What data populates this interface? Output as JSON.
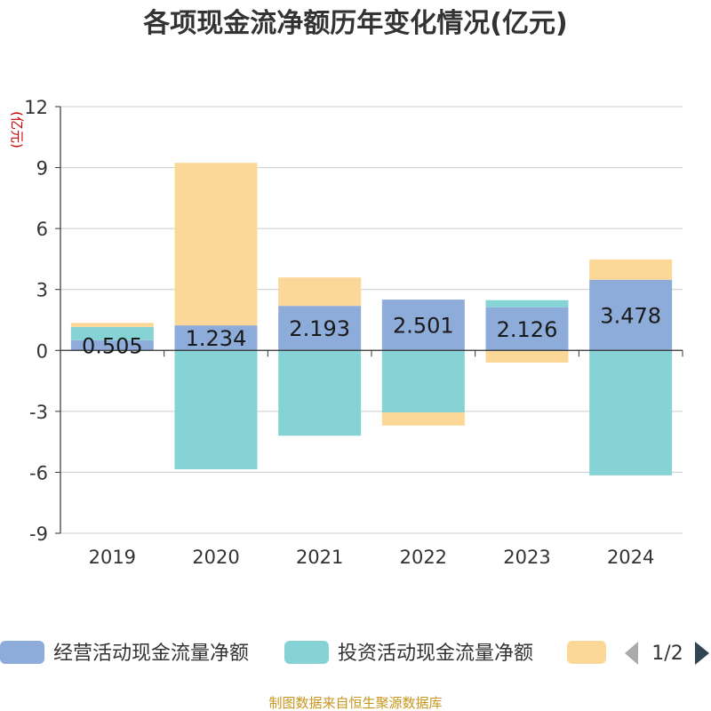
{
  "chart_data": {
    "type": "bar",
    "stacked": true,
    "title": "各项现金流净额历年变化情况(亿元)",
    "ylabel": "(亿元)",
    "categories": [
      "2019",
      "2020",
      "2021",
      "2022",
      "2023",
      "2024"
    ],
    "ylim": [
      -9,
      12
    ],
    "yticks": [
      12,
      9,
      6,
      3,
      0,
      -3,
      -6,
      -9
    ],
    "series": [
      {
        "name": "经营活动现金流量净额",
        "color": "#8eacd9",
        "values": [
          0.505,
          1.234,
          2.193,
          2.501,
          2.126,
          3.478
        ]
      },
      {
        "name": "投资活动现金流量净额",
        "color": "#86d3d6",
        "values": [
          0.65,
          -5.85,
          -4.2,
          -3.05,
          0.35,
          -6.15
        ]
      },
      {
        "name": "",
        "color": "#fcd898",
        "values": [
          0.2,
          8.0,
          1.4,
          -0.65,
          -0.6,
          1.0
        ]
      }
    ],
    "data_labels": [
      "0.505",
      "1.234",
      "2.193",
      "2.501",
      "2.126",
      "3.478"
    ],
    "legend": {
      "position": "bottom",
      "page": "1/2"
    },
    "source": "制图数据来自恒生聚源数据库"
  }
}
